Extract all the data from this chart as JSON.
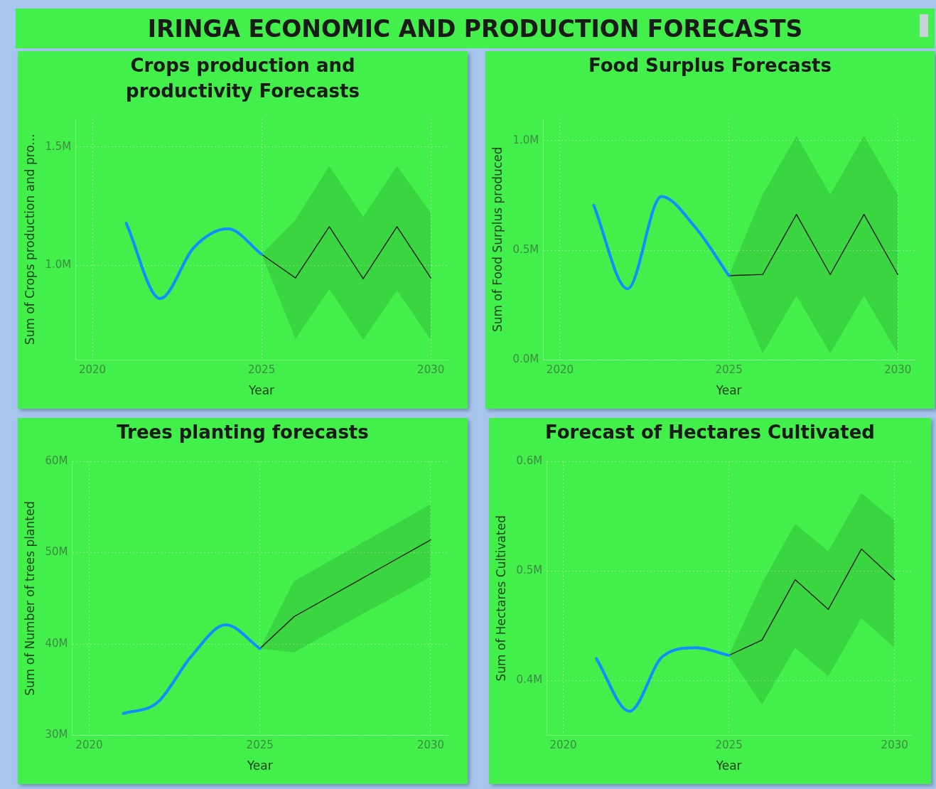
{
  "chart_data": [
    {
      "type": "other",
      "title": "IRINGA ECONOMIC AND PRODUCTION FORECASTS"
    },
    {
      "type": "line",
      "title": "Crops production and productivity Forecasts",
      "xlabel": "Year",
      "ylabel": "Sum of Crops production and pro...",
      "xlim": [
        2019.5,
        2030.5
      ],
      "xticks": [
        2020,
        2025,
        2030
      ],
      "ylim": [
        600000,
        1620000
      ],
      "yticks": [
        {
          "value": 1000000,
          "label": "1.0M"
        },
        {
          "value": 1500000,
          "label": "1.5M"
        }
      ],
      "grid": true,
      "series": [
        {
          "color": "#118dff",
          "x": [
            2021,
            2022,
            2023,
            2024,
            2025
          ],
          "values": [
            1178000,
            860000,
            1076000,
            1155000,
            1047000
          ]
        },
        {
          "color": "#111111",
          "x": [
            2025,
            2026,
            2027,
            2028,
            2029,
            2030
          ],
          "values": [
            1047000,
            947000,
            1164000,
            944000,
            1164000,
            947000
          ],
          "lower": [
            1047000,
            690000,
            900000,
            686000,
            895000,
            686000
          ],
          "upper": [
            1047000,
            1193000,
            1420000,
            1205000,
            1420000,
            1222000
          ]
        }
      ]
    },
    {
      "type": "line",
      "title": "Food Surplus Forecasts",
      "xlabel": "Year",
      "ylabel": "Sum of Food Surplus produced",
      "xlim": [
        2019.5,
        2030.5
      ],
      "xticks": [
        2020,
        2025,
        2030
      ],
      "ylim": [
        0,
        1100000
      ],
      "yticks": [
        {
          "value": 0,
          "label": "0.0M"
        },
        {
          "value": 500000,
          "label": "0.5M"
        },
        {
          "value": 1000000,
          "label": "1.0M"
        }
      ],
      "grid": true,
      "series": [
        {
          "color": "#118dff",
          "x": [
            2021,
            2022,
            2023,
            2024,
            2025
          ],
          "values": [
            705000,
            325000,
            745000,
            606000,
            385000
          ]
        },
        {
          "color": "#111111",
          "x": [
            2025,
            2026,
            2027,
            2028,
            2029,
            2030
          ],
          "values": [
            385000,
            390000,
            664000,
            390000,
            664000,
            390000
          ],
          "lower": [
            385000,
            30000,
            294000,
            30000,
            294000,
            30000
          ],
          "upper": [
            385000,
            754000,
            1022000,
            754000,
            1022000,
            754000
          ]
        }
      ]
    },
    {
      "type": "line",
      "title": "Trees planting forecasts",
      "xlabel": "Year",
      "ylabel": "Sum of Number of trees planted",
      "xlim": [
        2019.5,
        2030.5
      ],
      "xticks": [
        2020,
        2025,
        2030
      ],
      "ylim": [
        30000000,
        60000000
      ],
      "yticks": [
        {
          "value": 30000000,
          "label": "30M"
        },
        {
          "value": 40000000,
          "label": "40M"
        },
        {
          "value": 50000000,
          "label": "50M"
        },
        {
          "value": 60000000,
          "label": "60M"
        }
      ],
      "grid": true,
      "series": [
        {
          "color": "#118dff",
          "x": [
            2021,
            2022,
            2023,
            2024,
            2025
          ],
          "values": [
            32400000,
            33600000,
            38700000,
            42100000,
            39500000
          ]
        },
        {
          "color": "#111111",
          "x": [
            2025,
            2026,
            2027,
            2028,
            2029,
            2030
          ],
          "values": [
            39500000,
            43000000,
            45100000,
            47200000,
            49300000,
            51400000
          ],
          "lower": [
            39500000,
            39100000,
            41200000,
            43300000,
            45300000,
            47400000
          ],
          "upper": [
            39500000,
            46900000,
            49000000,
            51100000,
            53200000,
            55300000
          ]
        }
      ]
    },
    {
      "type": "line",
      "title": "Forecast of Hectares Cultivated",
      "xlabel": "Year",
      "ylabel": "Sum of Hectares Cultivated",
      "xlim": [
        2019.5,
        2030.5
      ],
      "xticks": [
        2020,
        2025,
        2030
      ],
      "ylim": [
        350000,
        600000
      ],
      "yticks": [
        {
          "value": 400000,
          "label": "0.4M"
        },
        {
          "value": 500000,
          "label": "0.5M"
        },
        {
          "value": 600000,
          "label": "0.6M"
        }
      ],
      "grid": true,
      "series": [
        {
          "color": "#118dff",
          "x": [
            2021,
            2022,
            2023,
            2024,
            2025
          ],
          "values": [
            420000,
            372000,
            422000,
            430000,
            423000
          ]
        },
        {
          "color": "#111111",
          "x": [
            2025,
            2026,
            2027,
            2028,
            2029,
            2030
          ],
          "values": [
            423000,
            437000,
            492000,
            465000,
            520000,
            492000
          ],
          "lower": [
            423000,
            378000,
            430000,
            404000,
            457000,
            430000
          ],
          "upper": [
            423000,
            489000,
            543000,
            518000,
            571000,
            546000
          ]
        }
      ]
    }
  ]
}
